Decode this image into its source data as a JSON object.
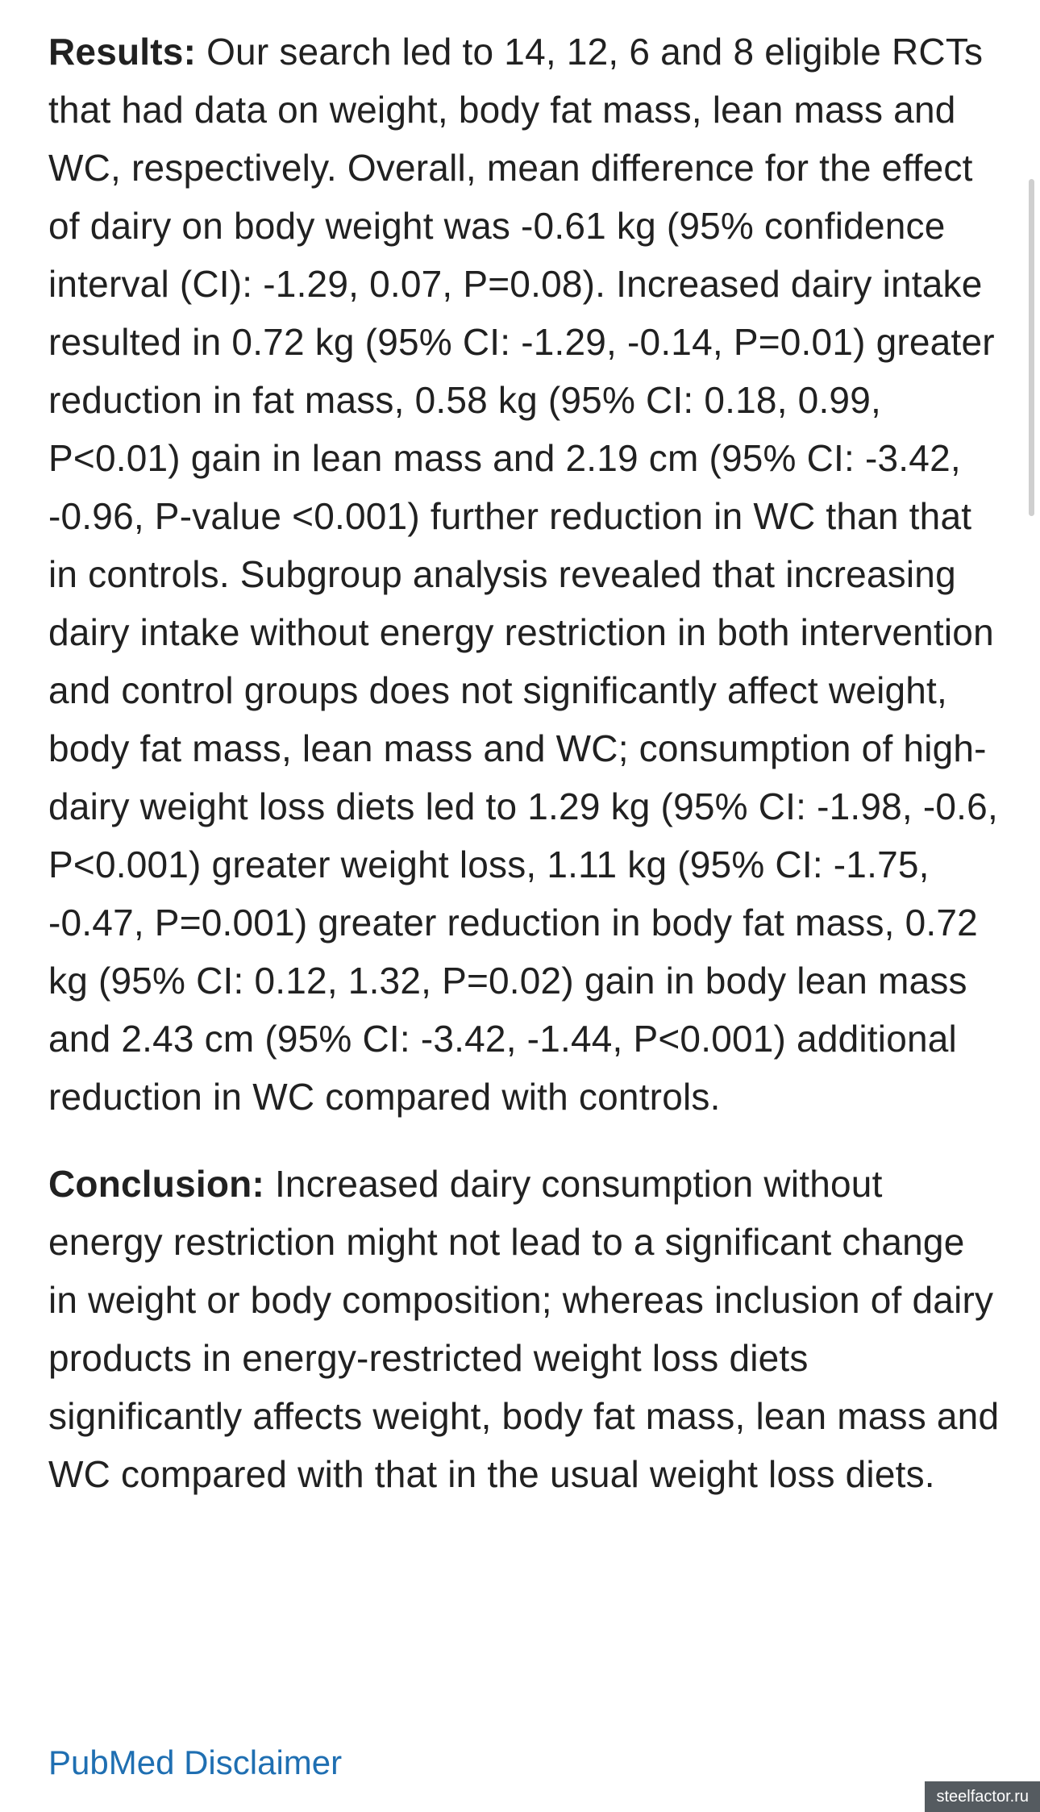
{
  "abstract": {
    "results": {
      "label": "Results:",
      "text": " Our search led to 14, 12, 6 and 8 eligible RCTs that had data on weight, body fat mass, lean mass and WC, respectively. Overall, mean difference for the effect of dairy on body weight was -0.61 kg (95% confidence interval (CI): -1.29, 0.07, P=0.08). Increased dairy intake resulted in 0.72 kg (95% CI: -1.29, -0.14, P=0.01) greater reduction in fat mass, 0.58 kg (95% CI: 0.18, 0.99, P<0.01) gain in lean mass and 2.19 cm (95% CI: -3.42, -0.96, P-value <0.001) further reduction in WC than that in controls. Subgroup analysis revealed that increasing dairy intake without energy restriction in both intervention and control groups does not significantly affect weight, body fat mass, lean mass and WC; consumption of high-dairy weight loss diets led to 1.29 kg (95% CI: -1.98, -0.6, P<0.001) greater weight loss, 1.11 kg (95% CI: -1.75, -0.47, P=0.001) greater reduction in body fat mass, 0.72 kg (95% CI: 0.12, 1.32, P=0.02) gain in body lean mass and 2.43 cm (95% CI: -3.42, -1.44, P<0.001) additional reduction in WC compared with controls."
    },
    "conclusion": {
      "label": "Conclusion:",
      "text": " Increased dairy consumption without energy restriction might not lead to a significant change in weight or body composition; whereas inclusion of dairy products in energy-restricted weight loss diets significantly affects weight, body fat mass, lean mass and WC compared with that in the usual weight loss diets."
    }
  },
  "links": {
    "disclaimer": "PubMed Disclaimer"
  },
  "watermark": "steelfactor.ru",
  "colors": {
    "text": "#212121",
    "link": "#1f6fb2",
    "background": "#ffffff"
  }
}
